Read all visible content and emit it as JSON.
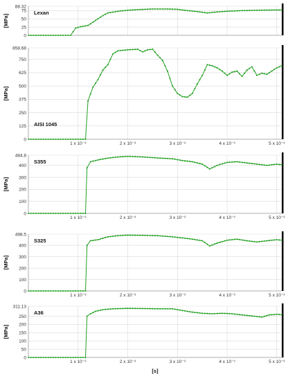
{
  "chart_data": [
    {
      "type": "line",
      "material": "Lexan",
      "ylabel": "[MPa]",
      "ylim": [
        0,
        88.32
      ],
      "yticks": [
        "0",
        "25",
        "50",
        "75",
        "88.32"
      ],
      "ytick_values": [
        0,
        25,
        50,
        75,
        88.32
      ],
      "xticks": [],
      "color": "#22a022",
      "series": [
        {
          "points": [
            [
              0,
              0
            ],
            [
              0.85,
              0
            ],
            [
              0.95,
              22
            ],
            [
              1.05,
              26
            ],
            [
              1.2,
              30
            ],
            [
              1.35,
              45
            ],
            [
              1.5,
              60
            ],
            [
              1.6,
              68
            ],
            [
              1.8,
              73
            ],
            [
              2.0,
              76
            ],
            [
              2.2,
              78
            ],
            [
              2.5,
              80
            ],
            [
              2.8,
              80
            ],
            [
              3.0,
              79
            ],
            [
              3.2,
              75
            ],
            [
              3.4,
              72
            ],
            [
              3.6,
              68
            ],
            [
              3.8,
              71
            ],
            [
              4.0,
              73
            ],
            [
              4.3,
              75
            ],
            [
              4.6,
              76
            ],
            [
              5.0,
              77
            ],
            [
              5.1,
              77
            ]
          ]
        }
      ]
    },
    {
      "type": "line",
      "material": "AISI 1045",
      "ylabel": "[MPa]",
      "ylim": [
        0,
        858.68
      ],
      "yticks": [
        "0",
        "125",
        "250",
        "375",
        "500",
        "625",
        "750",
        "858.68"
      ],
      "ytick_values": [
        0,
        125,
        250,
        375,
        500,
        625,
        750,
        858.68
      ],
      "xticks": [
        "1 x 10⁻³",
        "2 x 10⁻³",
        "3 x 10⁻³",
        "4 x 10⁻³",
        "5 x 10⁻³"
      ],
      "color": "#22a022",
      "series": [
        {
          "points": [
            [
              0,
              0
            ],
            [
              1.15,
              0
            ],
            [
              1.2,
              360
            ],
            [
              1.3,
              490
            ],
            [
              1.4,
              560
            ],
            [
              1.5,
              650
            ],
            [
              1.6,
              700
            ],
            [
              1.7,
              800
            ],
            [
              1.8,
              830
            ],
            [
              2.0,
              840
            ],
            [
              2.2,
              845
            ],
            [
              2.3,
              820
            ],
            [
              2.4,
              840
            ],
            [
              2.5,
              845
            ],
            [
              2.6,
              790
            ],
            [
              2.7,
              740
            ],
            [
              2.8,
              640
            ],
            [
              2.9,
              500
            ],
            [
              3.0,
              430
            ],
            [
              3.1,
              400
            ],
            [
              3.2,
              395
            ],
            [
              3.3,
              430
            ],
            [
              3.4,
              520
            ],
            [
              3.5,
              600
            ],
            [
              3.6,
              700
            ],
            [
              3.7,
              690
            ],
            [
              3.8,
              670
            ],
            [
              3.9,
              640
            ],
            [
              4.0,
              600
            ],
            [
              4.1,
              630
            ],
            [
              4.2,
              640
            ],
            [
              4.3,
              590
            ],
            [
              4.4,
              650
            ],
            [
              4.5,
              680
            ],
            [
              4.6,
              600
            ],
            [
              4.7,
              620
            ],
            [
              4.8,
              610
            ],
            [
              4.9,
              640
            ],
            [
              5.0,
              670
            ],
            [
              5.1,
              690
            ]
          ]
        }
      ]
    },
    {
      "type": "line",
      "material": "S355",
      "ylabel": "[MPa]",
      "ylim": [
        0,
        484.8
      ],
      "yticks": [
        "0",
        "100",
        "200",
        "300",
        "400",
        "484.8"
      ],
      "ytick_values": [
        0,
        100,
        200,
        300,
        400,
        484.8
      ],
      "xticks": [
        "1 x 10⁻³",
        "2 x 10⁻³",
        "3 x 10⁻³",
        "4 x 10⁻³",
        "5 x 10⁻³"
      ],
      "color": "#22a022",
      "series": [
        {
          "points": [
            [
              0,
              0
            ],
            [
              1.15,
              0
            ],
            [
              1.18,
              380
            ],
            [
              1.25,
              430
            ],
            [
              1.4,
              445
            ],
            [
              1.6,
              460
            ],
            [
              1.8,
              470
            ],
            [
              2.0,
              475
            ],
            [
              2.3,
              470
            ],
            [
              2.6,
              462
            ],
            [
              2.9,
              455
            ],
            [
              3.1,
              440
            ],
            [
              3.3,
              430
            ],
            [
              3.5,
              410
            ],
            [
              3.65,
              370
            ],
            [
              3.8,
              400
            ],
            [
              4.0,
              425
            ],
            [
              4.2,
              430
            ],
            [
              4.4,
              420
            ],
            [
              4.6,
              410
            ],
            [
              4.8,
              400
            ],
            [
              5.0,
              410
            ],
            [
              5.1,
              405
            ]
          ]
        }
      ]
    },
    {
      "type": "line",
      "material": "S325",
      "ylabel": "[MPa]",
      "ylim": [
        0,
        498.5
      ],
      "yticks": [
        "0",
        "100",
        "200",
        "300",
        "400",
        "498.5"
      ],
      "ytick_values": [
        0,
        100,
        200,
        300,
        400,
        498.5
      ],
      "xticks": [
        "1 x 10⁻³",
        "2 x 10⁻³",
        "3 x 10⁻³",
        "4 x 10⁻³",
        "5 x 10⁻³"
      ],
      "color": "#22a022",
      "series": [
        {
          "points": [
            [
              0,
              0
            ],
            [
              1.15,
              0
            ],
            [
              1.18,
              400
            ],
            [
              1.25,
              440
            ],
            [
              1.4,
              450
            ],
            [
              1.6,
              475
            ],
            [
              1.8,
              485
            ],
            [
              2.0,
              490
            ],
            [
              2.3,
              488
            ],
            [
              2.6,
              485
            ],
            [
              2.9,
              475
            ],
            [
              3.1,
              465
            ],
            [
              3.3,
              455
            ],
            [
              3.5,
              440
            ],
            [
              3.65,
              395
            ],
            [
              3.8,
              420
            ],
            [
              4.0,
              445
            ],
            [
              4.2,
              455
            ],
            [
              4.4,
              440
            ],
            [
              4.6,
              430
            ],
            [
              4.8,
              440
            ],
            [
              5.0,
              450
            ],
            [
              5.1,
              445
            ]
          ]
        }
      ]
    },
    {
      "type": "line",
      "material": "A36",
      "ylabel": "[MPa]",
      "ylim": [
        0,
        311.13
      ],
      "yticks": [
        "0",
        "50",
        "100",
        "150",
        "200",
        "250",
        "311.13"
      ],
      "ytick_values": [
        0,
        50,
        100,
        150,
        200,
        250,
        311.13
      ],
      "xticks": [
        "1 x 10⁻³",
        "2 x 10⁻³",
        "3 x 10⁻³",
        "4 x 10⁻³",
        "5 x 10⁻³"
      ],
      "xlabel": "[s]",
      "color": "#22a022",
      "series": [
        {
          "points": [
            [
              0,
              0
            ],
            [
              1.15,
              0
            ],
            [
              1.18,
              250
            ],
            [
              1.25,
              265
            ],
            [
              1.35,
              280
            ],
            [
              1.5,
              290
            ],
            [
              1.7,
              295
            ],
            [
              2.0,
              298
            ],
            [
              2.3,
              297
            ],
            [
              2.6,
              295
            ],
            [
              2.9,
              295
            ],
            [
              3.1,
              285
            ],
            [
              3.3,
              275
            ],
            [
              3.5,
              268
            ],
            [
              3.7,
              265
            ],
            [
              3.9,
              268
            ],
            [
              4.1,
              265
            ],
            [
              4.3,
              258
            ],
            [
              4.5,
              252
            ],
            [
              4.7,
              245
            ],
            [
              4.85,
              258
            ],
            [
              5.0,
              262
            ],
            [
              5.1,
              260
            ]
          ]
        }
      ]
    }
  ]
}
